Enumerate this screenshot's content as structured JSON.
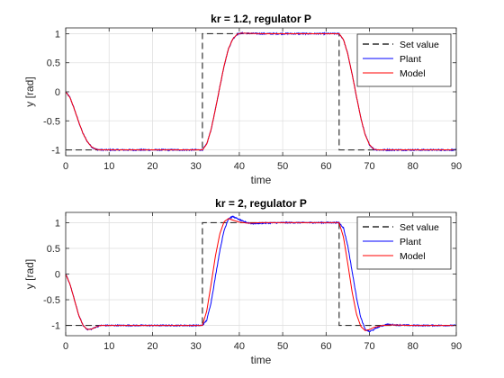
{
  "colors": {
    "set_value": "#000000",
    "plant": "#0000ff",
    "model": "#ff0000",
    "grid": "#e0e0e0",
    "axes": "#262626"
  },
  "chart_data": [
    {
      "type": "line",
      "title": "kr = 1.2, regulator P",
      "xlabel": "time",
      "ylabel": "y  [rad]",
      "xlim": [
        0,
        90
      ],
      "ylim": [
        -1.1,
        1.1
      ],
      "xticks": [
        0,
        10,
        20,
        30,
        40,
        50,
        60,
        70,
        80,
        90
      ],
      "yticks": [
        -1,
        -0.5,
        0,
        0.5,
        1
      ],
      "ytick_labels": [
        "-1",
        "-0.5",
        "0",
        "0.5",
        "1"
      ],
      "grid": true,
      "legend_position": "top-right",
      "series": [
        {
          "name": "Set value",
          "style": "dashed",
          "color": "#000000",
          "x": [
            0,
            31.5,
            31.5,
            63,
            63,
            90
          ],
          "y": [
            -1,
            -1,
            1,
            1,
            -1,
            -1
          ]
        },
        {
          "name": "Plant",
          "style": "solid",
          "color": "#0000ff",
          "noise": 0.012,
          "x": [
            0,
            1,
            2,
            3,
            4,
            5,
            6,
            7,
            8,
            9,
            10,
            15,
            20,
            25,
            31.5,
            32.5,
            33.5,
            34.5,
            35.5,
            36.5,
            37.5,
            38.5,
            39.5,
            40.5,
            45,
            50,
            55,
            63,
            64,
            65,
            66,
            67,
            68,
            69,
            70,
            71,
            72,
            80,
            90
          ],
          "y": [
            0,
            -0.1,
            -0.3,
            -0.52,
            -0.72,
            -0.86,
            -0.95,
            -0.99,
            -1.0,
            -1.0,
            -1.0,
            -1.0,
            -1.0,
            -1.0,
            -1.0,
            -0.9,
            -0.65,
            -0.3,
            0.08,
            0.45,
            0.74,
            0.91,
            0.99,
            1.01,
            1.0,
            1.0,
            1.0,
            1.0,
            0.9,
            0.65,
            0.3,
            -0.08,
            -0.45,
            -0.74,
            -0.91,
            -0.99,
            -1.0,
            -1.0,
            -1.0
          ]
        },
        {
          "name": "Model",
          "style": "solid",
          "color": "#ff0000",
          "noise": 0,
          "x": [
            0,
            1,
            2,
            3,
            4,
            5,
            6,
            7,
            8,
            9,
            10,
            15,
            20,
            25,
            31.5,
            32.5,
            33.5,
            34.5,
            35.5,
            36.5,
            37.5,
            38.5,
            39.5,
            40.5,
            45,
            50,
            55,
            63,
            64,
            65,
            66,
            67,
            68,
            69,
            70,
            71,
            72,
            80,
            90
          ],
          "y": [
            0,
            -0.1,
            -0.3,
            -0.52,
            -0.72,
            -0.86,
            -0.95,
            -0.99,
            -1.0,
            -1.0,
            -1.0,
            -1.0,
            -1.0,
            -1.0,
            -1.0,
            -0.9,
            -0.65,
            -0.3,
            0.08,
            0.45,
            0.74,
            0.91,
            0.99,
            1.01,
            1.0,
            1.0,
            1.0,
            1.0,
            0.9,
            0.65,
            0.3,
            -0.08,
            -0.45,
            -0.74,
            -0.91,
            -0.99,
            -1.0,
            -1.0,
            -1.0
          ]
        }
      ]
    },
    {
      "type": "line",
      "title": "kr = 2, regulator P",
      "xlabel": "time",
      "ylabel": "y  [rad]",
      "xlim": [
        0,
        90
      ],
      "ylim": [
        -1.2,
        1.2
      ],
      "xticks": [
        0,
        10,
        20,
        30,
        40,
        50,
        60,
        70,
        80,
        90
      ],
      "yticks": [
        -1,
        -0.5,
        0,
        0.5,
        1
      ],
      "ytick_labels": [
        "-1",
        "-0.5",
        "0",
        "0.5",
        "1"
      ],
      "grid": true,
      "legend_position": "top-right",
      "series": [
        {
          "name": "Set value",
          "style": "dashed",
          "color": "#000000",
          "x": [
            0,
            31.5,
            31.5,
            63,
            63,
            90
          ],
          "y": [
            -1,
            -1,
            1,
            1,
            -1,
            -1
          ]
        },
        {
          "name": "Plant",
          "style": "solid",
          "color": "#0000ff",
          "noise": 0.012,
          "x": [
            0,
            1,
            2,
            3,
            4,
            5,
            6,
            7,
            8,
            10,
            15,
            20,
            31.5,
            32.5,
            33.5,
            34.5,
            35.5,
            36.5,
            37.5,
            38.5,
            39.5,
            41,
            43,
            45,
            50,
            55,
            63,
            64,
            65,
            66,
            67,
            68,
            69,
            70,
            71,
            72,
            74,
            76,
            80,
            90
          ],
          "y": [
            0,
            -0.2,
            -0.5,
            -0.8,
            -1.0,
            -1.08,
            -1.07,
            -1.03,
            -1.0,
            -1.0,
            -1.0,
            -1.0,
            -1.0,
            -0.9,
            -0.55,
            -0.05,
            0.45,
            0.85,
            1.08,
            1.12,
            1.08,
            1.02,
            0.98,
            0.99,
            1.0,
            1.0,
            1.0,
            0.9,
            0.55,
            0.05,
            -0.45,
            -0.85,
            -1.08,
            -1.12,
            -1.08,
            -1.03,
            -0.98,
            -0.99,
            -1.0,
            -1.0
          ]
        },
        {
          "name": "Model",
          "style": "solid",
          "color": "#ff0000",
          "noise": 0,
          "x": [
            0,
            1,
            2,
            3,
            4,
            5,
            6,
            7,
            8,
            10,
            15,
            20,
            31.5,
            32.5,
            33.5,
            34.5,
            35.5,
            36.5,
            37.5,
            38.5,
            40,
            42,
            45,
            50,
            55,
            63,
            64,
            65,
            66,
            67,
            68,
            69,
            70,
            71,
            73,
            75,
            80,
            90
          ],
          "y": [
            0,
            -0.2,
            -0.5,
            -0.8,
            -1.0,
            -1.08,
            -1.07,
            -1.03,
            -1.0,
            -1.0,
            -1.0,
            -1.0,
            -1.0,
            -0.72,
            -0.2,
            0.35,
            0.78,
            1.02,
            1.08,
            1.05,
            1.01,
            0.99,
            1.0,
            1.0,
            1.0,
            1.0,
            0.72,
            0.2,
            -0.35,
            -0.78,
            -1.02,
            -1.1,
            -1.08,
            -1.04,
            -1.0,
            -0.99,
            -1.0,
            -1.0
          ]
        }
      ]
    }
  ]
}
